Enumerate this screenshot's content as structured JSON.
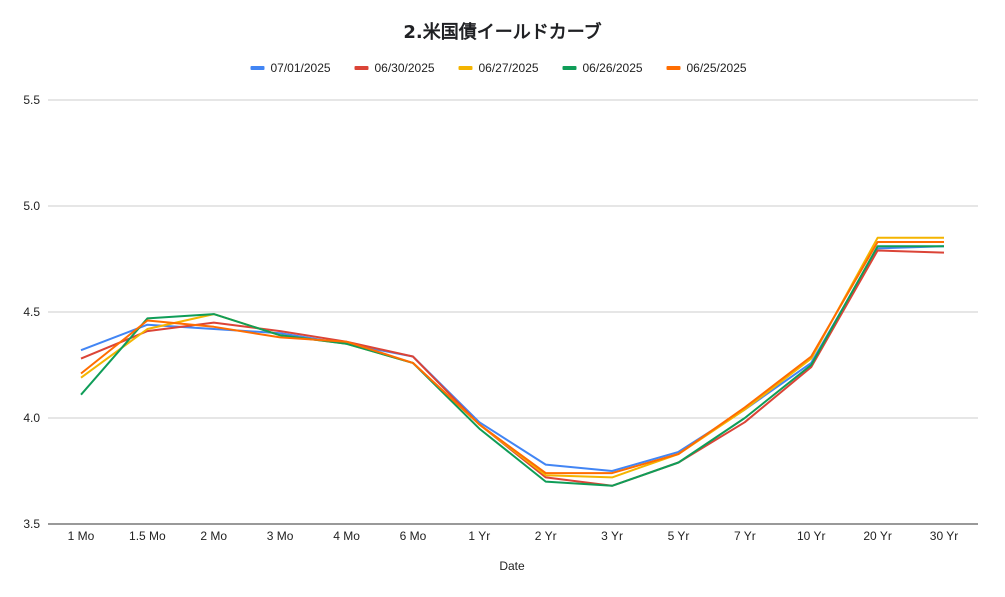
{
  "chart_data": {
    "type": "line",
    "title": "2.米国債イールドカーブ",
    "xlabel": "Date",
    "ylabel": "",
    "categories": [
      "1 Mo",
      "1.5 Mo",
      "2 Mo",
      "3 Mo",
      "4 Mo",
      "6 Mo",
      "1 Yr",
      "2 Yr",
      "3 Yr",
      "5 Yr",
      "7 Yr",
      "10 Yr",
      "20 Yr",
      "30 Yr"
    ],
    "yticks": [
      "3.5",
      "4.0",
      "4.5",
      "5.0",
      "5.5"
    ],
    "ylim": [
      3.5,
      5.5
    ],
    "grid": true,
    "legend_position": "top",
    "series": [
      {
        "name": "07/01/2025",
        "color": "#4285f4",
        "values": [
          4.32,
          4.44,
          4.42,
          4.4,
          4.35,
          4.29,
          3.98,
          3.78,
          3.75,
          3.84,
          4.04,
          4.26,
          4.8,
          4.81
        ]
      },
      {
        "name": "06/30/2025",
        "color": "#db4437",
        "values": [
          4.28,
          4.41,
          4.45,
          4.41,
          4.36,
          4.29,
          3.97,
          3.72,
          3.68,
          3.79,
          3.98,
          4.24,
          4.79,
          4.78
        ]
      },
      {
        "name": "06/27/2025",
        "color": "#f4b400",
        "values": [
          4.19,
          4.42,
          4.49,
          4.39,
          4.35,
          4.26,
          3.97,
          3.73,
          3.72,
          3.83,
          4.04,
          4.28,
          4.85,
          4.85
        ]
      },
      {
        "name": "06/26/2025",
        "color": "#0f9d58",
        "values": [
          4.11,
          4.47,
          4.49,
          4.39,
          4.35,
          4.26,
          3.95,
          3.7,
          3.68,
          3.79,
          4.0,
          4.25,
          4.81,
          4.81
        ]
      },
      {
        "name": "06/25/2025",
        "color": "#ff6d01",
        "values": [
          4.21,
          4.46,
          4.43,
          4.38,
          4.36,
          4.26,
          3.97,
          3.74,
          3.74,
          3.83,
          4.05,
          4.29,
          4.83,
          4.83
        ]
      }
    ]
  }
}
